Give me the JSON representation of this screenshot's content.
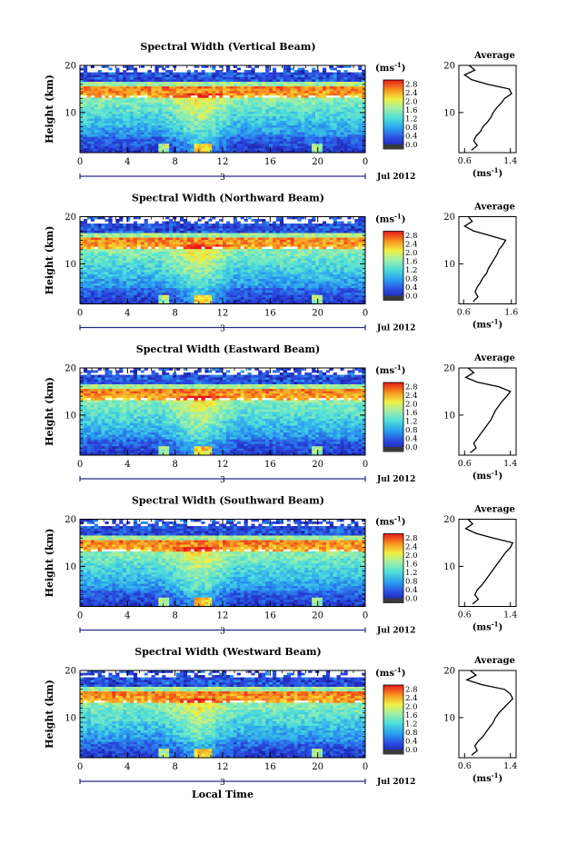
{
  "figure": {
    "xlabel_bottom": "Local Time",
    "date_label": "Jul 2012",
    "day_label": "3",
    "colorbar_unit": "(ms",
    "unit_exp": "-1",
    "average_title": "Average",
    "ylabel": "Height (km)"
  },
  "chart_data": [
    {
      "type": "heatmap",
      "title": "Spectral Width (Vertical Beam)",
      "xlabel": "Local Time",
      "ylabel": "Height (km)",
      "x_ticks": [
        "0",
        "4",
        "8",
        "12",
        "16",
        "20",
        "0"
      ],
      "y_ticks": [
        "10",
        "20"
      ],
      "xlim": [
        0,
        24
      ],
      "ylim": [
        1.5,
        20
      ],
      "colorbar_label": "(ms-1)",
      "colorbar_ticks": [
        "0.0",
        "0.4",
        "0.8",
        "1.2",
        "1.6",
        "2.0",
        "2.4",
        "2.8"
      ],
      "clim": [
        0,
        3.0
      ],
      "average_profile": {
        "xlabel": "(ms-1)",
        "x_ticks": [
          "0.6",
          "1.4"
        ],
        "xlim": [
          0.5,
          1.5
        ],
        "heights": [
          2,
          3,
          4,
          5,
          6,
          7,
          8,
          9,
          10,
          11,
          12,
          13,
          14,
          15,
          16,
          17,
          18,
          19,
          20
        ],
        "values": [
          0.72,
          0.82,
          0.76,
          0.8,
          0.88,
          0.92,
          1.0,
          1.06,
          1.1,
          1.16,
          1.24,
          1.3,
          1.42,
          1.38,
          1.0,
          0.72,
          0.6,
          0.78,
          0.68
        ]
      }
    },
    {
      "type": "heatmap",
      "title": "Spectral Width (Northward Beam)",
      "xlabel": "Local Time",
      "ylabel": "Height (km)",
      "x_ticks": [
        "0",
        "4",
        "8",
        "12",
        "16",
        "20",
        "0"
      ],
      "y_ticks": [
        "10",
        "20"
      ],
      "xlim": [
        0,
        24
      ],
      "ylim": [
        1.5,
        20
      ],
      "colorbar_label": "(ms-1)",
      "colorbar_ticks": [
        "0.0",
        "0.4",
        "0.8",
        "1.2",
        "1.6",
        "2.0",
        "2.4",
        "2.8"
      ],
      "clim": [
        0,
        3.0
      ],
      "average_profile": {
        "xlabel": "(ms-1)",
        "x_ticks": [
          "0.6",
          "1.6"
        ],
        "xlim": [
          0.5,
          1.7
        ],
        "heights": [
          2,
          3,
          4,
          5,
          6,
          7,
          8,
          9,
          10,
          11,
          12,
          13,
          14,
          15,
          16,
          17,
          18,
          19,
          20
        ],
        "values": [
          0.8,
          0.9,
          0.84,
          0.88,
          0.95,
          1.0,
          1.08,
          1.12,
          1.18,
          1.24,
          1.3,
          1.34,
          1.42,
          1.48,
          1.15,
          0.8,
          0.62,
          0.78,
          0.7
        ]
      }
    },
    {
      "type": "heatmap",
      "title": "Spectral Width (Eastward Beam)",
      "xlabel": "Local Time",
      "ylabel": "Height (km)",
      "x_ticks": [
        "0",
        "4",
        "8",
        "12",
        "16",
        "20",
        "0"
      ],
      "y_ticks": [
        "10",
        "20"
      ],
      "xlim": [
        0,
        24
      ],
      "ylim": [
        1.5,
        20
      ],
      "colorbar_label": "(ms-1)",
      "colorbar_ticks": [
        "0.0",
        "0.4",
        "0.8",
        "1.2",
        "1.6",
        "2.0",
        "2.4",
        "2.8"
      ],
      "clim": [
        0,
        3.0
      ],
      "average_profile": {
        "xlabel": "(ms-1)",
        "x_ticks": [
          "0.6",
          "1.4"
        ],
        "xlim": [
          0.5,
          1.5
        ],
        "heights": [
          2,
          3,
          4,
          5,
          6,
          7,
          8,
          9,
          10,
          11,
          12,
          13,
          14,
          15,
          16,
          17,
          18,
          19,
          20
        ],
        "values": [
          0.7,
          0.8,
          0.76,
          0.82,
          0.88,
          0.94,
          1.0,
          1.06,
          1.1,
          1.14,
          1.2,
          1.26,
          1.34,
          1.4,
          1.2,
          0.82,
          0.62,
          0.76,
          0.66
        ]
      }
    },
    {
      "type": "heatmap",
      "title": "Spectral Width (Southward Beam)",
      "xlabel": "Local Time",
      "ylabel": "Height (km)",
      "x_ticks": [
        "0",
        "4",
        "8",
        "12",
        "16",
        "20",
        "0"
      ],
      "y_ticks": [
        "10",
        "20"
      ],
      "xlim": [
        0,
        24
      ],
      "ylim": [
        1.5,
        20
      ],
      "colorbar_label": "(ms-1)",
      "colorbar_ticks": [
        "0.0",
        "0.4",
        "0.8",
        "1.2",
        "1.6",
        "2.0",
        "2.4",
        "2.8"
      ],
      "clim": [
        0,
        3.0
      ],
      "average_profile": {
        "xlabel": "(ms-1)",
        "x_ticks": [
          "0.6",
          "1.4"
        ],
        "xlim": [
          0.5,
          1.5
        ],
        "heights": [
          2,
          3,
          4,
          5,
          6,
          7,
          8,
          9,
          10,
          11,
          12,
          13,
          14,
          15,
          16,
          17,
          18,
          19,
          20
        ],
        "values": [
          0.74,
          0.84,
          0.78,
          0.82,
          0.9,
          0.96,
          1.02,
          1.08,
          1.14,
          1.2,
          1.26,
          1.32,
          1.4,
          1.44,
          1.1,
          0.8,
          0.62,
          0.74,
          0.66
        ]
      }
    },
    {
      "type": "heatmap",
      "title": "Spectral Width (Westward Beam)",
      "xlabel": "Local Time",
      "ylabel": "Height (km)",
      "x_ticks": [
        "0",
        "4",
        "8",
        "12",
        "16",
        "20",
        "0"
      ],
      "y_ticks": [
        "10",
        "20"
      ],
      "xlim": [
        0,
        24
      ],
      "ylim": [
        1.5,
        20
      ],
      "colorbar_label": "(ms-1)",
      "colorbar_ticks": [
        "0.0",
        "0.4",
        "0.8",
        "1.2",
        "1.6",
        "2.0",
        "2.4",
        "2.8"
      ],
      "clim": [
        0,
        3.0
      ],
      "average_profile": {
        "xlabel": "(ms-1)",
        "x_ticks": [
          "0.6",
          "1.4"
        ],
        "xlim": [
          0.5,
          1.5
        ],
        "heights": [
          2,
          3,
          4,
          5,
          6,
          7,
          8,
          9,
          10,
          11,
          12,
          13,
          14,
          15,
          16,
          17,
          18,
          19,
          20
        ],
        "values": [
          0.72,
          0.82,
          0.78,
          0.84,
          0.92,
          0.98,
          1.04,
          1.1,
          1.14,
          1.2,
          1.28,
          1.36,
          1.44,
          1.4,
          1.3,
          0.9,
          0.64,
          0.8,
          0.7
        ]
      }
    }
  ]
}
